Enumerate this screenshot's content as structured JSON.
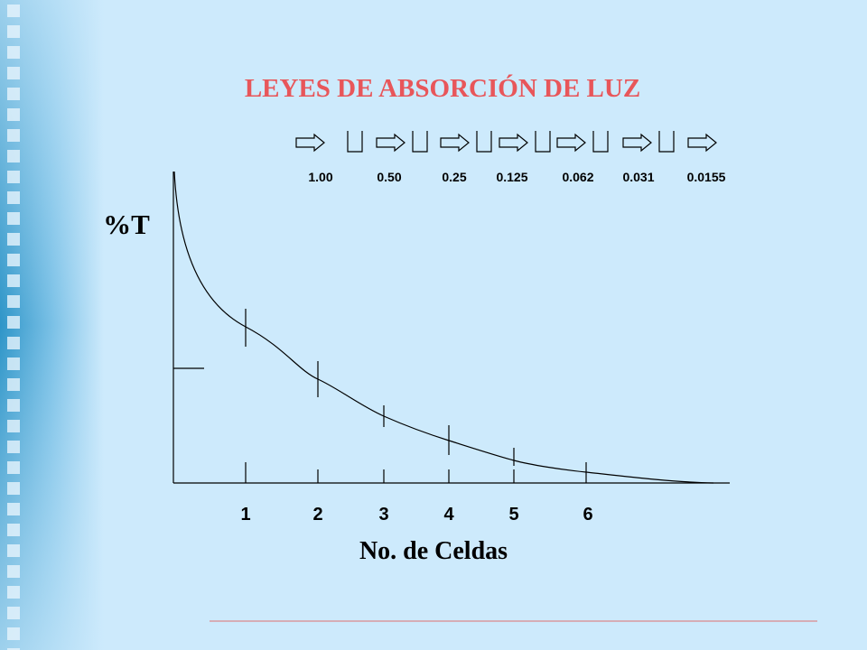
{
  "title": "LEYES DE ABSORCIÓN DE LUZ",
  "transmittances": [
    "1.00",
    "0.50",
    "0.25",
    "0.125",
    "0.062",
    "0.031",
    "0.0155"
  ],
  "y_label": "%T",
  "x_ticks": [
    "1",
    "2",
    "3",
    "4",
    "5",
    "6"
  ],
  "x_label": "No. de Celdas"
}
